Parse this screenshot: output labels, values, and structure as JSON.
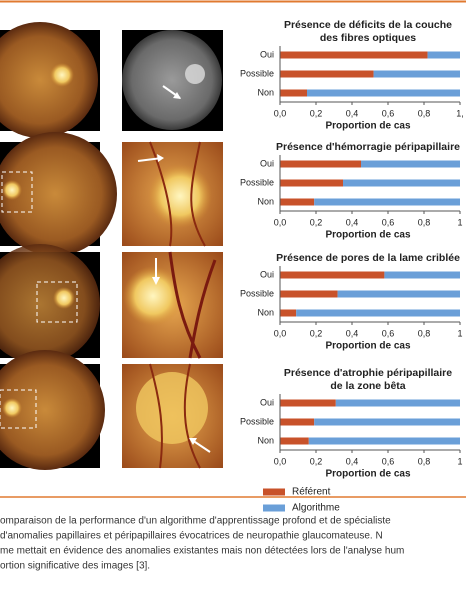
{
  "chart_data": [
    {
      "type": "bar",
      "orientation": "horizontal",
      "stacked": true,
      "title": [
        "Présence de déficits de la couche",
        "des fibres optiques"
      ],
      "categories": [
        "Oui",
        "Possible",
        "Non"
      ],
      "series": [
        {
          "color": "#c8522a",
          "values": [
            0.82,
            0.52,
            0.15
          ]
        },
        {
          "color": "#6a9fd8",
          "values": [
            0.18,
            0.48,
            0.85
          ]
        }
      ],
      "xlim": [
        0,
        1
      ],
      "xticks": [
        {
          "value": 0,
          "label": "0,0"
        },
        {
          "value": 0.2,
          "label": "0,2"
        },
        {
          "value": 0.4,
          "label": "0,4"
        },
        {
          "value": 0.6,
          "label": "0,6"
        },
        {
          "value": 0.8,
          "label": "0,8"
        },
        {
          "value": 1,
          "label": "1,"
        }
      ],
      "xlabel": "Proportion de cas"
    },
    {
      "type": "bar",
      "orientation": "horizontal",
      "stacked": true,
      "title": [
        "Présence d'hémorragie péripapillaire"
      ],
      "categories": [
        "Oui",
        "Possible",
        "Non"
      ],
      "series": [
        {
          "color": "#c8522a",
          "values": [
            0.45,
            0.35,
            0.19
          ]
        },
        {
          "color": "#6a9fd8",
          "values": [
            0.55,
            0.65,
            0.81
          ]
        }
      ],
      "xlim": [
        0,
        1
      ],
      "xticks": [
        {
          "value": 0,
          "label": "0,0"
        },
        {
          "value": 0.2,
          "label": "0,2"
        },
        {
          "value": 0.4,
          "label": "0,4"
        },
        {
          "value": 0.6,
          "label": "0,6"
        },
        {
          "value": 0.8,
          "label": "0,8"
        },
        {
          "value": 1,
          "label": "1"
        }
      ],
      "xlabel": "Proportion de cas"
    },
    {
      "type": "bar",
      "orientation": "horizontal",
      "stacked": true,
      "title": [
        "Présence de pores de la lame criblée"
      ],
      "categories": [
        "Oui",
        "Possible",
        "Non"
      ],
      "series": [
        {
          "color": "#c8522a",
          "values": [
            0.58,
            0.32,
            0.09
          ]
        },
        {
          "color": "#6a9fd8",
          "values": [
            0.42,
            0.68,
            0.91
          ]
        }
      ],
      "xlim": [
        0,
        1
      ],
      "xticks": [
        {
          "value": 0,
          "label": "0,0"
        },
        {
          "value": 0.2,
          "label": "0,2"
        },
        {
          "value": 0.4,
          "label": "0,4"
        },
        {
          "value": 0.6,
          "label": "0,6"
        },
        {
          "value": 0.8,
          "label": "0,8"
        },
        {
          "value": 1,
          "label": "1"
        }
      ],
      "xlabel": "Proportion de cas"
    },
    {
      "type": "bar",
      "orientation": "horizontal",
      "stacked": true,
      "title": [
        "Présence d'atrophie péripapillaire",
        "de la zone bêta"
      ],
      "categories": [
        "Oui",
        "Possible",
        "Non"
      ],
      "series": [
        {
          "name": "Référent",
          "color": "#c8522a",
          "values": [
            0.31,
            0.19,
            0.16
          ]
        },
        {
          "name": "Algorithme",
          "color": "#6a9fd8",
          "values": [
            0.69,
            0.81,
            0.84
          ]
        }
      ],
      "xlim": [
        0,
        1
      ],
      "xticks": [
        {
          "value": 0,
          "label": "0,0"
        },
        {
          "value": 0.2,
          "label": "0,2"
        },
        {
          "value": 0.4,
          "label": "0,4"
        },
        {
          "value": 0.6,
          "label": "0,6"
        },
        {
          "value": 0.8,
          "label": "0,8"
        },
        {
          "value": 1,
          "label": "1"
        }
      ],
      "xlabel": "Proportion de cas"
    }
  ],
  "caption": [
    "omparaison de la performance d'un algorithme d'apprentissage profond et de spécialiste",
    " d'anomalies papillaires et péripapillaires évocatrices de neuropathie glaucomateuse. N",
    "me mettait en évidence des anomalies existantes mais non détectées lors de l'analyse hum",
    "ortion significative des images [3]."
  ]
}
